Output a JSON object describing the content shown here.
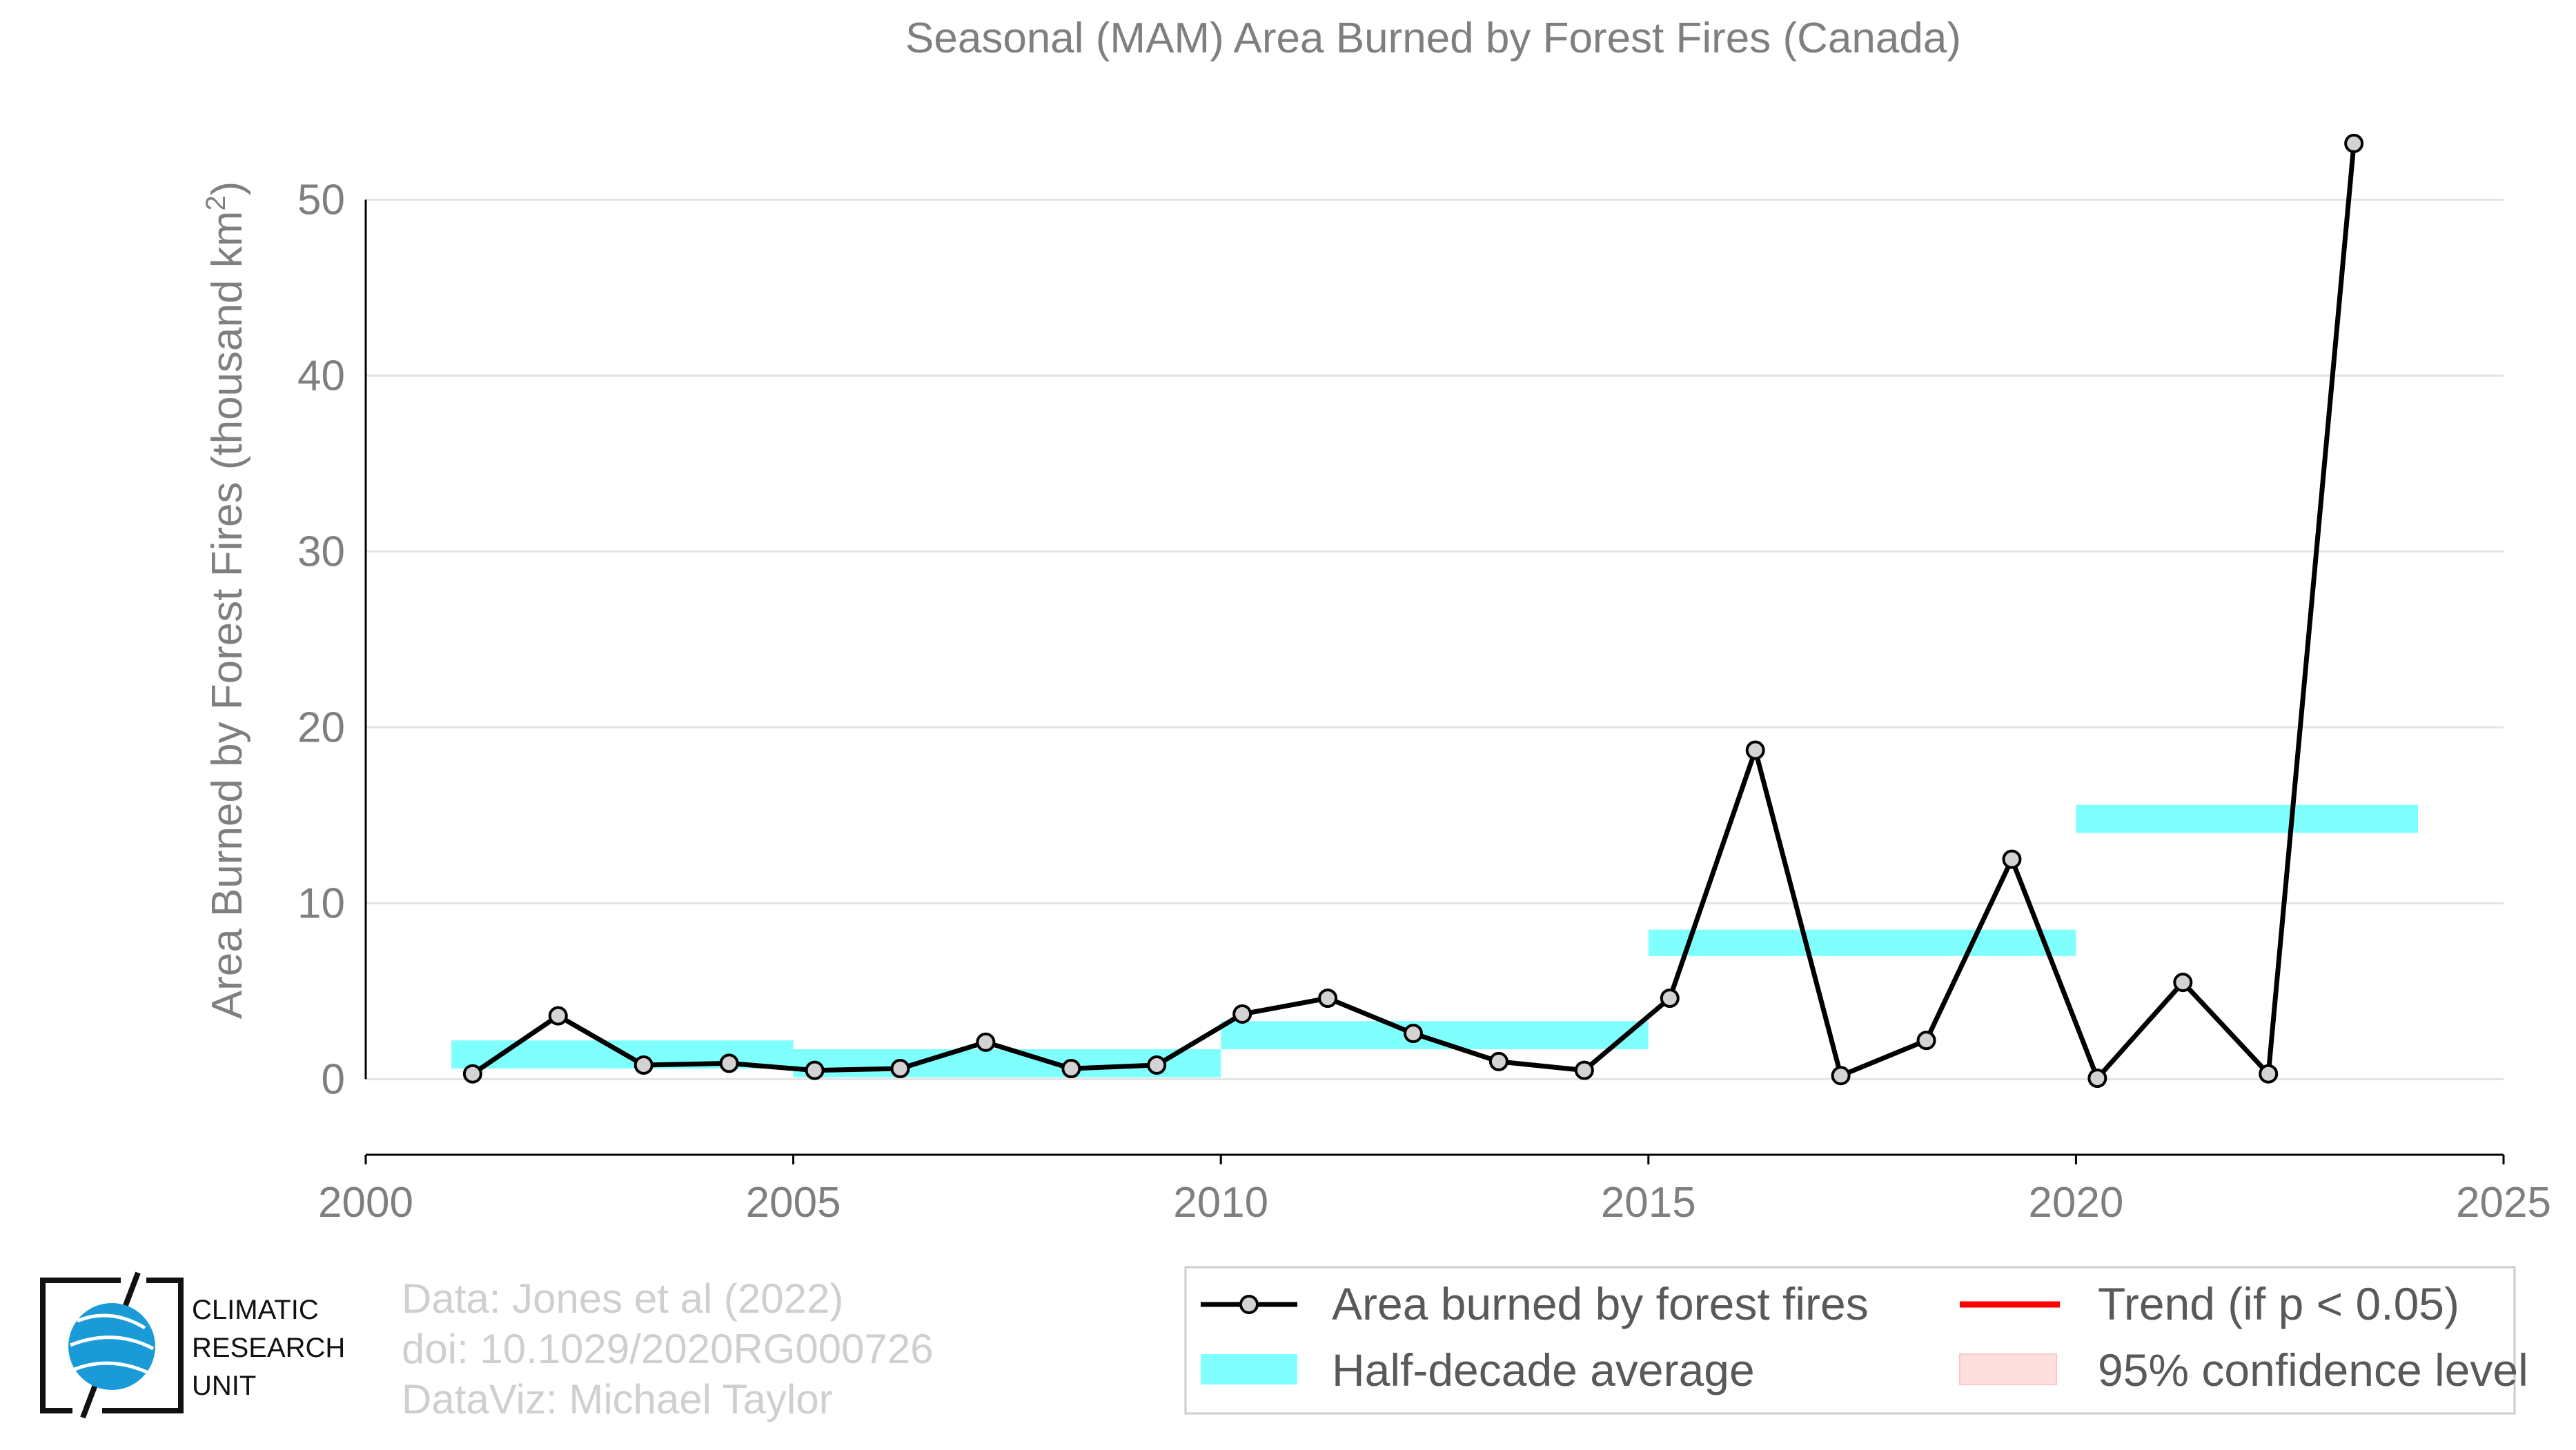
{
  "chart_data": {
    "type": "line",
    "title": "Seasonal (MAM) Area Burned by Forest Fires (Canada)",
    "ylabel_main": "Area Burned by Forest Fires (thousand km",
    "ylabel_sup": "2",
    "ylabel_end": ")",
    "xlabel": "",
    "xlim": [
      2000,
      2025
    ],
    "ylim": [
      -4.3,
      55
    ],
    "xticks": [
      2000,
      2005,
      2010,
      2015,
      2020,
      2025
    ],
    "yticks": [
      0,
      10,
      20,
      30,
      40,
      50
    ],
    "grid": true,
    "series": [
      {
        "name": "Area burned by forest fires",
        "color": "#000000",
        "marker_fill": "#d3d3d3",
        "x": [
          2001.25,
          2002.25,
          2003.25,
          2004.25,
          2005.25,
          2006.25,
          2007.25,
          2008.25,
          2009.25,
          2010.25,
          2011.25,
          2012.25,
          2013.25,
          2014.25,
          2015.25,
          2016.25,
          2017.25,
          2018.25,
          2019.25,
          2020.25,
          2021.25,
          2022.25,
          2023.25
        ],
        "y": [
          0.3,
          3.6,
          0.8,
          0.9,
          0.5,
          0.6,
          2.1,
          0.6,
          0.8,
          3.7,
          4.6,
          2.6,
          1.0,
          0.5,
          4.6,
          18.7,
          0.2,
          2.2,
          12.5,
          0.05,
          5.5,
          0.3,
          53.2
        ]
      }
    ],
    "half_decade_average": {
      "name": "Half-decade average",
      "color": "#80ffff",
      "bands": [
        {
          "x0": 2001,
          "x1": 2005,
          "y0": 0.6,
          "y1": 2.2
        },
        {
          "x0": 2005,
          "x1": 2010,
          "y0": 0.1,
          "y1": 1.7
        },
        {
          "x0": 2010,
          "x1": 2015,
          "y0": 1.7,
          "y1": 3.3
        },
        {
          "x0": 2015,
          "x1": 2020,
          "y0": 7.0,
          "y1": 8.5
        },
        {
          "x0": 2020,
          "x1": 2024,
          "y0": 14.0,
          "y1": 15.6
        }
      ]
    },
    "legend": {
      "placement": "bottom-right",
      "items": [
        {
          "label": "Area burned by forest fires",
          "kind": "line-marker",
          "color": "#000000"
        },
        {
          "label": "Trend (if p < 0.05)",
          "kind": "line",
          "color": "#ff0000"
        },
        {
          "label": "Half-decade average",
          "kind": "band",
          "color": "#80ffff"
        },
        {
          "label": "95% confidence level",
          "kind": "band",
          "color": "#ffdede"
        }
      ]
    }
  },
  "credits": {
    "line1": "Data: Jones et al (2022)",
    "line2": "doi: 10.1029/2020RG000726",
    "line3": "DataViz: Michael Taylor"
  },
  "logo": {
    "line1": "CLIMATIC",
    "line2": "RESEARCH",
    "line3": "UNIT",
    "globe_color": "#1a9bd7"
  }
}
